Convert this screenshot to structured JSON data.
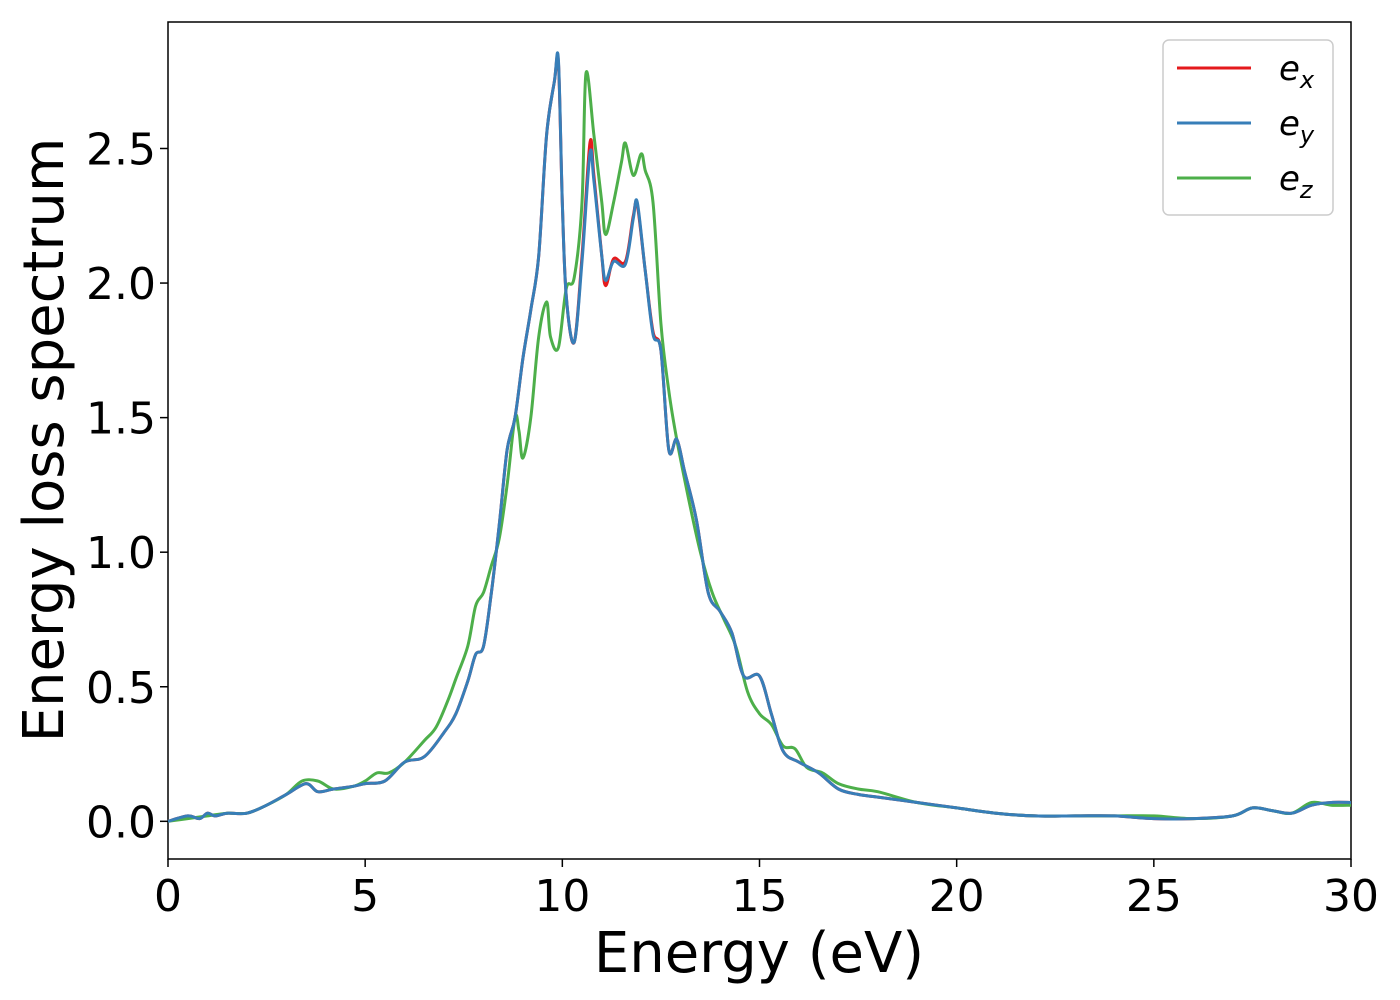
{
  "chart_data": {
    "type": "line",
    "xlabel": "Energy (eV)",
    "ylabel": "Energy loss spectrum",
    "xlim": [
      0,
      30
    ],
    "ylim": [
      -0.14,
      2.97
    ],
    "xticks": [
      0,
      5,
      10,
      15,
      20,
      25,
      30
    ],
    "xtick_labels": [
      "0",
      "5",
      "10",
      "15",
      "20",
      "25",
      "30"
    ],
    "yticks": [
      0.0,
      0.5,
      1.0,
      1.5,
      2.0,
      2.5
    ],
    "ytick_labels": [
      "0.0",
      "0.5",
      "1.0",
      "1.5",
      "2.0",
      "2.5"
    ],
    "grid": false,
    "legend": "top-right",
    "series": [
      {
        "name": "e_x",
        "label_base": "e",
        "label_sub": "x",
        "color": "#e41a1c",
        "x": [
          0,
          0.5,
          0.8,
          1.0,
          1.2,
          1.5,
          2.0,
          2.5,
          3.0,
          3.5,
          3.8,
          4.2,
          4.7,
          5.0,
          5.5,
          6.0,
          6.5,
          7.0,
          7.3,
          7.6,
          7.8,
          8.0,
          8.2,
          8.4,
          8.6,
          8.8,
          9.0,
          9.2,
          9.4,
          9.6,
          9.8,
          9.9,
          10.0,
          10.1,
          10.3,
          10.5,
          10.7,
          10.8,
          11.0,
          11.1,
          11.3,
          11.6,
          11.8,
          11.9,
          12.1,
          12.3,
          12.5,
          12.7,
          12.9,
          13.1,
          13.4,
          13.7,
          14.0,
          14.3,
          14.6,
          15.0,
          15.3,
          15.6,
          16.0,
          16.5,
          17.0,
          17.5,
          18.0,
          19.0,
          20.0,
          21.0,
          22.0,
          23.0,
          24.0,
          25.0,
          26.0,
          27.0,
          27.5,
          28.0,
          28.5,
          29.0,
          29.5,
          30.0
        ],
        "values": [
          0.0,
          0.02,
          0.01,
          0.03,
          0.02,
          0.03,
          0.03,
          0.06,
          0.1,
          0.14,
          0.11,
          0.12,
          0.13,
          0.14,
          0.15,
          0.22,
          0.24,
          0.33,
          0.4,
          0.52,
          0.62,
          0.65,
          0.85,
          1.1,
          1.38,
          1.5,
          1.72,
          1.9,
          2.1,
          2.55,
          2.75,
          2.82,
          2.3,
          1.95,
          1.78,
          2.1,
          2.52,
          2.4,
          2.1,
          1.99,
          2.09,
          2.08,
          2.25,
          2.29,
          2.05,
          1.82,
          1.75,
          1.38,
          1.42,
          1.3,
          1.12,
          0.85,
          0.78,
          0.7,
          0.54,
          0.54,
          0.4,
          0.26,
          0.22,
          0.18,
          0.12,
          0.1,
          0.09,
          0.07,
          0.05,
          0.03,
          0.02,
          0.02,
          0.02,
          0.01,
          0.01,
          0.02,
          0.05,
          0.04,
          0.03,
          0.06,
          0.07,
          0.07
        ]
      },
      {
        "name": "e_y",
        "label_base": "e",
        "label_sub": "y",
        "color": "#377eb8",
        "x": [
          0,
          0.5,
          0.8,
          1.0,
          1.2,
          1.5,
          2.0,
          2.5,
          3.0,
          3.5,
          3.8,
          4.2,
          4.7,
          5.0,
          5.5,
          6.0,
          6.5,
          7.0,
          7.3,
          7.6,
          7.8,
          8.0,
          8.2,
          8.4,
          8.6,
          8.8,
          9.0,
          9.2,
          9.4,
          9.6,
          9.8,
          9.9,
          10.0,
          10.1,
          10.3,
          10.5,
          10.7,
          10.8,
          11.0,
          11.1,
          11.3,
          11.6,
          11.8,
          11.9,
          12.1,
          12.3,
          12.5,
          12.7,
          12.9,
          13.1,
          13.4,
          13.7,
          14.0,
          14.3,
          14.6,
          15.0,
          15.3,
          15.6,
          16.0,
          16.5,
          17.0,
          17.5,
          18.0,
          19.0,
          20.0,
          21.0,
          22.0,
          23.0,
          24.0,
          25.0,
          26.0,
          27.0,
          27.5,
          28.0,
          28.5,
          29.0,
          29.5,
          30.0
        ],
        "values": [
          0.0,
          0.02,
          0.01,
          0.03,
          0.02,
          0.03,
          0.03,
          0.06,
          0.1,
          0.14,
          0.11,
          0.12,
          0.13,
          0.14,
          0.15,
          0.22,
          0.24,
          0.33,
          0.4,
          0.52,
          0.62,
          0.65,
          0.85,
          1.1,
          1.38,
          1.5,
          1.72,
          1.9,
          2.1,
          2.55,
          2.75,
          2.83,
          2.3,
          1.95,
          1.78,
          2.08,
          2.48,
          2.38,
          2.1,
          2.01,
          2.08,
          2.07,
          2.24,
          2.3,
          2.05,
          1.81,
          1.75,
          1.38,
          1.42,
          1.3,
          1.12,
          0.85,
          0.78,
          0.7,
          0.54,
          0.54,
          0.4,
          0.26,
          0.22,
          0.18,
          0.12,
          0.1,
          0.09,
          0.07,
          0.05,
          0.03,
          0.02,
          0.02,
          0.02,
          0.01,
          0.01,
          0.02,
          0.05,
          0.04,
          0.03,
          0.06,
          0.07,
          0.07
        ]
      },
      {
        "name": "e_z",
        "label_base": "e",
        "label_sub": "z",
        "color": "#4daf4a",
        "x": [
          0,
          0.5,
          1.0,
          1.5,
          2.0,
          2.5,
          3.0,
          3.4,
          3.8,
          4.2,
          4.7,
          5.0,
          5.3,
          5.6,
          6.0,
          6.5,
          6.8,
          7.1,
          7.3,
          7.6,
          7.8,
          8.0,
          8.2,
          8.4,
          8.6,
          8.8,
          8.9,
          9.0,
          9.2,
          9.4,
          9.6,
          9.7,
          9.9,
          10.1,
          10.3,
          10.5,
          10.6,
          10.8,
          11.0,
          11.1,
          11.3,
          11.5,
          11.6,
          11.8,
          12.0,
          12.1,
          12.3,
          12.5,
          12.7,
          12.9,
          13.2,
          13.5,
          13.8,
          14.1,
          14.4,
          14.7,
          15.0,
          15.3,
          15.6,
          15.9,
          16.2,
          16.6,
          17.0,
          17.5,
          18.0,
          19.0,
          20.0,
          21.0,
          22.0,
          23.0,
          24.0,
          25.0,
          26.0,
          27.0,
          27.5,
          28.0,
          28.5,
          29.0,
          29.5,
          30.0
        ],
        "values": [
          0.0,
          0.01,
          0.02,
          0.03,
          0.03,
          0.06,
          0.1,
          0.15,
          0.15,
          0.12,
          0.13,
          0.15,
          0.18,
          0.18,
          0.22,
          0.3,
          0.35,
          0.45,
          0.53,
          0.65,
          0.8,
          0.85,
          0.95,
          1.05,
          1.25,
          1.5,
          1.45,
          1.35,
          1.5,
          1.8,
          1.93,
          1.8,
          1.76,
          1.98,
          2.02,
          2.3,
          2.78,
          2.55,
          2.3,
          2.18,
          2.3,
          2.45,
          2.52,
          2.4,
          2.48,
          2.42,
          2.3,
          1.85,
          1.6,
          1.42,
          1.2,
          1.0,
          0.85,
          0.75,
          0.65,
          0.48,
          0.4,
          0.36,
          0.28,
          0.27,
          0.2,
          0.18,
          0.14,
          0.12,
          0.11,
          0.07,
          0.05,
          0.03,
          0.02,
          0.02,
          0.02,
          0.02,
          0.01,
          0.02,
          0.05,
          0.04,
          0.03,
          0.07,
          0.06,
          0.06
        ]
      }
    ]
  }
}
